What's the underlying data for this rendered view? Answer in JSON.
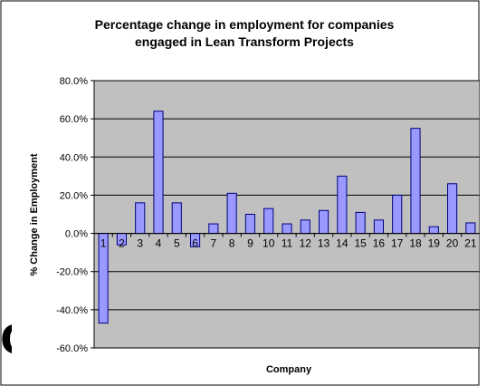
{
  "fragment_text": "o",
  "colors": {
    "plot_bg": "#c0c0c0",
    "bar_fill": "#9999ff",
    "bar_stroke": "#000080",
    "grid": "#000000",
    "frame": "#000000"
  },
  "chart_data": {
    "type": "bar",
    "title": "Percentage change in employment for companies engaged in Lean Transform Projects",
    "title_lines": [
      "Percentage change in employment for companies",
      "engaged in Lean Transform Projects"
    ],
    "xlabel": "Company",
    "ylabel": "% Change in Employment",
    "categories": [
      "1",
      "2",
      "3",
      "4",
      "5",
      "6",
      "7",
      "8",
      "9",
      "10",
      "11",
      "12",
      "13",
      "14",
      "15",
      "16",
      "17",
      "18",
      "19",
      "20",
      "21"
    ],
    "values": [
      -47.0,
      -6.0,
      16.0,
      64.0,
      16.0,
      -7.0,
      5.0,
      21.0,
      10.0,
      13.0,
      5.0,
      7.0,
      12.0,
      30.0,
      11.0,
      7.0,
      20.0,
      55.0,
      3.5,
      26.0,
      5.5
    ],
    "ylim": [
      -60,
      80
    ],
    "yticks": [
      -60,
      -40,
      -20,
      0,
      20,
      40,
      60,
      80
    ],
    "ytick_labels": [
      "-60.0%",
      "-40.0%",
      "-20.0%",
      "0.0%",
      "20.0%",
      "40.0%",
      "60.0%",
      "80.0%"
    ],
    "grid": true,
    "legend": "none"
  }
}
